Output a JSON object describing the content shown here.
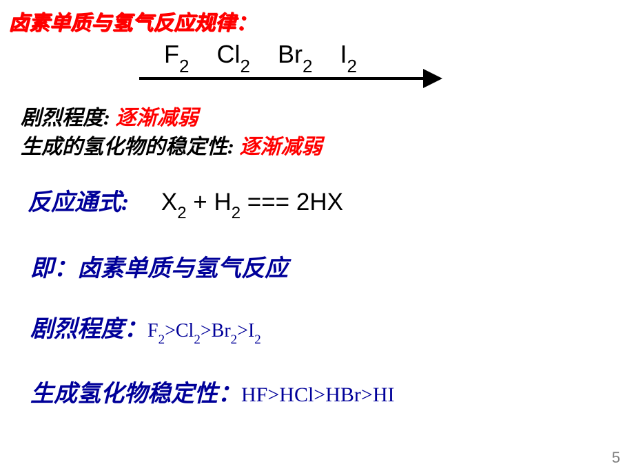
{
  "title": "卤素单质与氢气反应规律：",
  "halogens": {
    "f": "F",
    "cl": "Cl",
    "br": "Br",
    "i": "I",
    "sub": "2"
  },
  "line1": {
    "label": "剧烈程度:",
    "value": "逐渐减弱"
  },
  "line2": {
    "label": "生成的氢化物的稳定性:",
    "value": "逐渐减弱"
  },
  "equation": {
    "label": "反应通式:",
    "x": "X",
    "h": "H",
    "sub": "2",
    "eq": " === ",
    "plus": " + ",
    "product": "2HX"
  },
  "description": "即：卤素单质与氢气反应",
  "intensity": {
    "label": "剧烈程度：",
    "f": "F",
    "cl": "Cl",
    "br": "Br",
    "i": "I",
    "sub": "2",
    "gt": ">"
  },
  "stability": {
    "label": "生成氢化物稳定性：",
    "hf": "HF",
    "hcl": "HCl",
    "hbr": "HBr",
    "hi": "HI",
    "gt": ">"
  },
  "pageNumber": "5",
  "colors": {
    "red": "#ff0000",
    "blue": "#000099",
    "black": "#000000",
    "gray": "#808080",
    "bg": "#ffffff"
  }
}
